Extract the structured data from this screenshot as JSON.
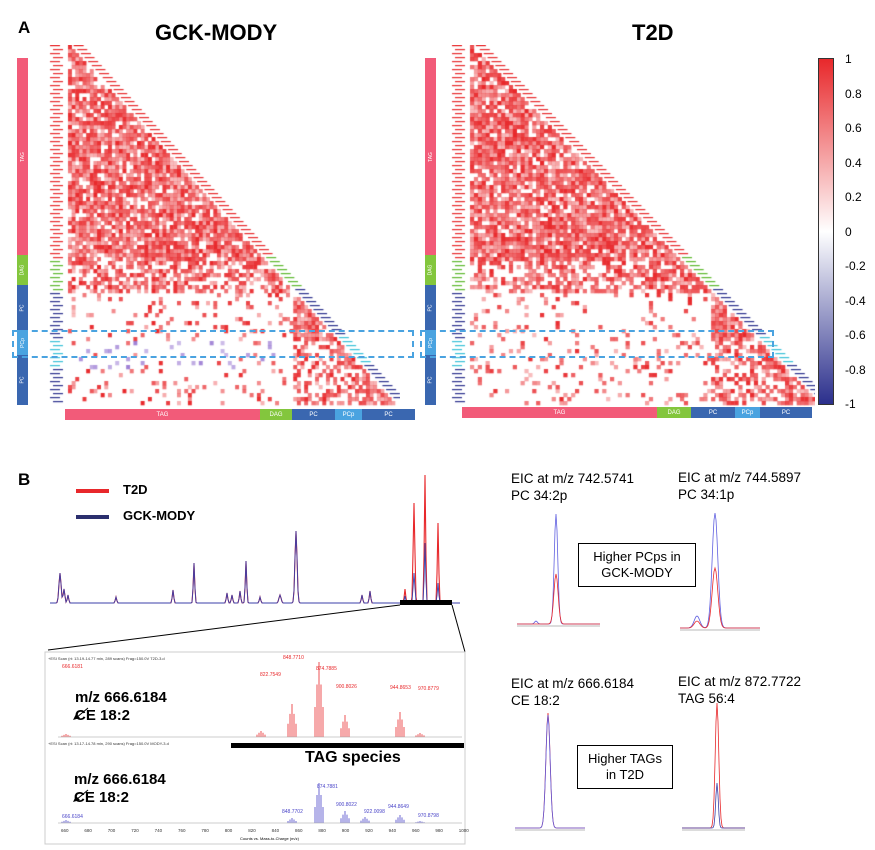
{
  "panel_a": {
    "label": "A",
    "left_title": "GCK-MODY",
    "right_title": "T2D",
    "class_bar": [
      {
        "label": "TAG",
        "color": "#f25b79"
      },
      {
        "label": "DAG",
        "color": "#83c63d"
      },
      {
        "label": "PC",
        "color": "#3a67b0"
      },
      {
        "label": "PCp",
        "color": "#4aa3e0"
      },
      {
        "label": "PC",
        "color": "#3a67b0"
      }
    ],
    "colorbar": {
      "ticks": [
        "1",
        "0.8",
        "0.6",
        "0.4",
        "0.2",
        "0",
        "-0.2",
        "-0.4",
        "-0.6",
        "-0.8",
        "-1"
      ],
      "colors": [
        "#e8282b",
        "#ffffff",
        "#2b2f8c"
      ]
    },
    "highlight_color": "#4aa3e0"
  },
  "panel_b": {
    "label": "B",
    "legend": [
      {
        "label": "T2D",
        "color": "#e8282b"
      },
      {
        "label": "GCK-MODY",
        "color": "#2b2f6e"
      }
    ],
    "tag_label": "TAG species",
    "ms_top": {
      "header": "+ESI Scan (rt: 13.19-14.77 min, 289 scans) Frag=150.0V T2D-3.d",
      "peaks": [
        "666.6181",
        "822.7549",
        "848.7710",
        "874.7885",
        "900.8026",
        "944.8653",
        "970.8779"
      ],
      "annotation": [
        "m/z 666.6184",
        "CE 18:2"
      ]
    },
    "ms_bottom": {
      "header": "+ESI Scan (rt: 13.17-14.78 min, 290 scans) Frag=150.0V MODY-3.d",
      "peaks": [
        "666.6184",
        "848.7702",
        "874.7881",
        "900.8022",
        "922.0098",
        "944.8649",
        "970.8798"
      ],
      "annotation": [
        "m/z 666.6184",
        "CE 18:2"
      ]
    },
    "ms_xlabel": "Counts vs. Mass-to-Charge (m/z)",
    "ms_xticks": [
      "660",
      "680",
      "700",
      "720",
      "740",
      "760",
      "780",
      "800",
      "820",
      "840",
      "860",
      "880",
      "900",
      "920",
      "940",
      "960",
      "980",
      "1000"
    ],
    "eic": [
      {
        "line1": "EIC at m/z 742.5741",
        "line2": "PC 34:2p"
      },
      {
        "line1": "EIC at m/z 744.5897",
        "line2": "PC 34:1p"
      },
      {
        "line1": "EIC at m/z 666.6184",
        "line2": "CE 18:2"
      },
      {
        "line1": "EIC at m/z 872.7722",
        "line2": "TAG 56:4"
      }
    ],
    "callouts": [
      {
        "line1": "Higher PCps in",
        "line2": "GCK-MODY"
      },
      {
        "line1": "Higher TAGs",
        "line2": "in T2D"
      }
    ]
  }
}
